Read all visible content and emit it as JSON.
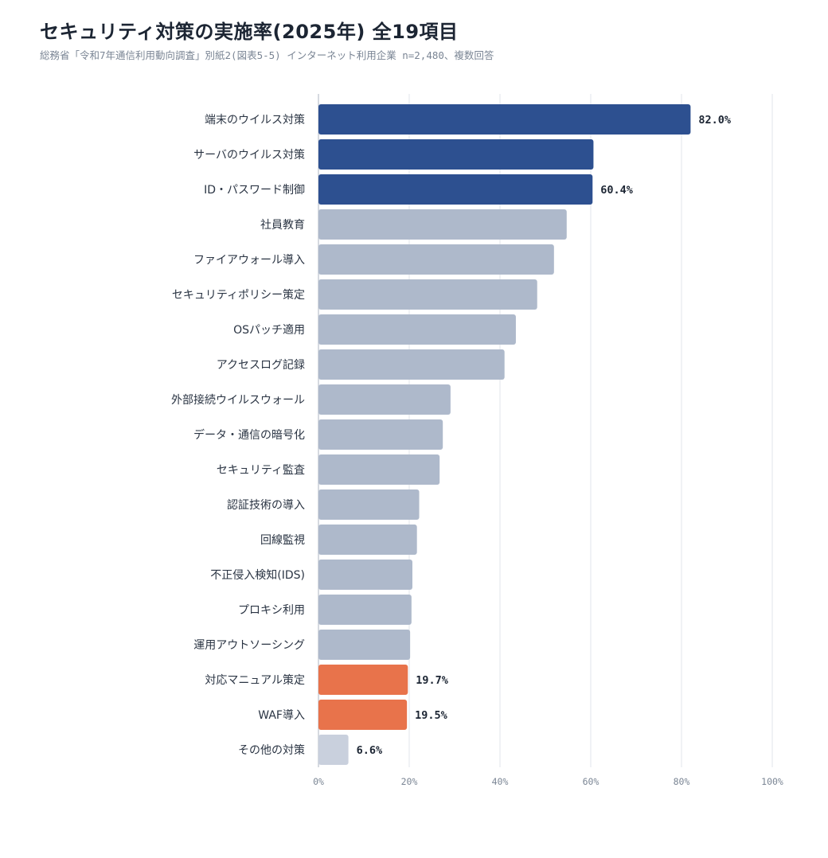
{
  "header": {
    "title": "セキュリティ対策の実施率(2025年) 全19項目",
    "subtitle": "総務省「令和7年通信利用動向調査」別紙2(図表5-5) インターネット利用企業 n=2,480、複数回答"
  },
  "chart_data": {
    "type": "bar",
    "orientation": "horizontal",
    "title": "セキュリティ対策の実施率(2025年) 全19項目",
    "subtitle": "総務省「令和7年通信利用動向調査」別紙2(図表5-5) インターネット利用企業 n=2,480、複数回答",
    "xlim": [
      0,
      100
    ],
    "x_ticks": [
      "0%",
      "20%",
      "40%",
      "60%",
      "80%",
      "100%"
    ],
    "grid": true,
    "colors": {
      "top": "#2d5090",
      "normal": "#aeb9cb",
      "highlight": "#e8734b",
      "other": "#c9d0dd",
      "grid": "#e6e9ee",
      "axis": "#c9ced6"
    },
    "bars": [
      {
        "label": "端末のウイルス対策",
        "value": 82.0,
        "group": "top",
        "value_label": "82.0%"
      },
      {
        "label": "サーバのウイルス対策",
        "value": 60.6,
        "group": "top",
        "value_label": ""
      },
      {
        "label": "ID・パスワード制御",
        "value": 60.4,
        "group": "top",
        "value_label": "60.4%"
      },
      {
        "label": "社員教育",
        "value": 54.7,
        "group": "normal",
        "value_label": ""
      },
      {
        "label": "ファイアウォール導入",
        "value": 51.9,
        "group": "normal",
        "value_label": ""
      },
      {
        "label": "セキュリティポリシー策定",
        "value": 48.2,
        "group": "normal",
        "value_label": ""
      },
      {
        "label": "OSパッチ適用",
        "value": 43.5,
        "group": "normal",
        "value_label": ""
      },
      {
        "label": "アクセスログ記録",
        "value": 41.0,
        "group": "normal",
        "value_label": ""
      },
      {
        "label": "外部接続ウイルスウォール",
        "value": 29.1,
        "group": "normal",
        "value_label": ""
      },
      {
        "label": "データ・通信の暗号化",
        "value": 27.4,
        "group": "normal",
        "value_label": ""
      },
      {
        "label": "セキュリティ監査",
        "value": 26.7,
        "group": "normal",
        "value_label": ""
      },
      {
        "label": "認証技術の導入",
        "value": 22.2,
        "group": "normal",
        "value_label": ""
      },
      {
        "label": "回線監視",
        "value": 21.7,
        "group": "normal",
        "value_label": ""
      },
      {
        "label": "不正侵入検知(IDS)",
        "value": 20.7,
        "group": "normal",
        "value_label": ""
      },
      {
        "label": "プロキシ利用",
        "value": 20.5,
        "group": "normal",
        "value_label": ""
      },
      {
        "label": "運用アウトソーシング",
        "value": 20.2,
        "group": "normal",
        "value_label": ""
      },
      {
        "label": "対応マニュアル策定",
        "value": 19.7,
        "group": "highlight",
        "value_label": "19.7%"
      },
      {
        "label": "WAF導入",
        "value": 19.5,
        "group": "highlight",
        "value_label": "19.5%"
      },
      {
        "label": "その他の対策",
        "value": 6.6,
        "group": "other",
        "value_label": "6.6%"
      }
    ]
  }
}
